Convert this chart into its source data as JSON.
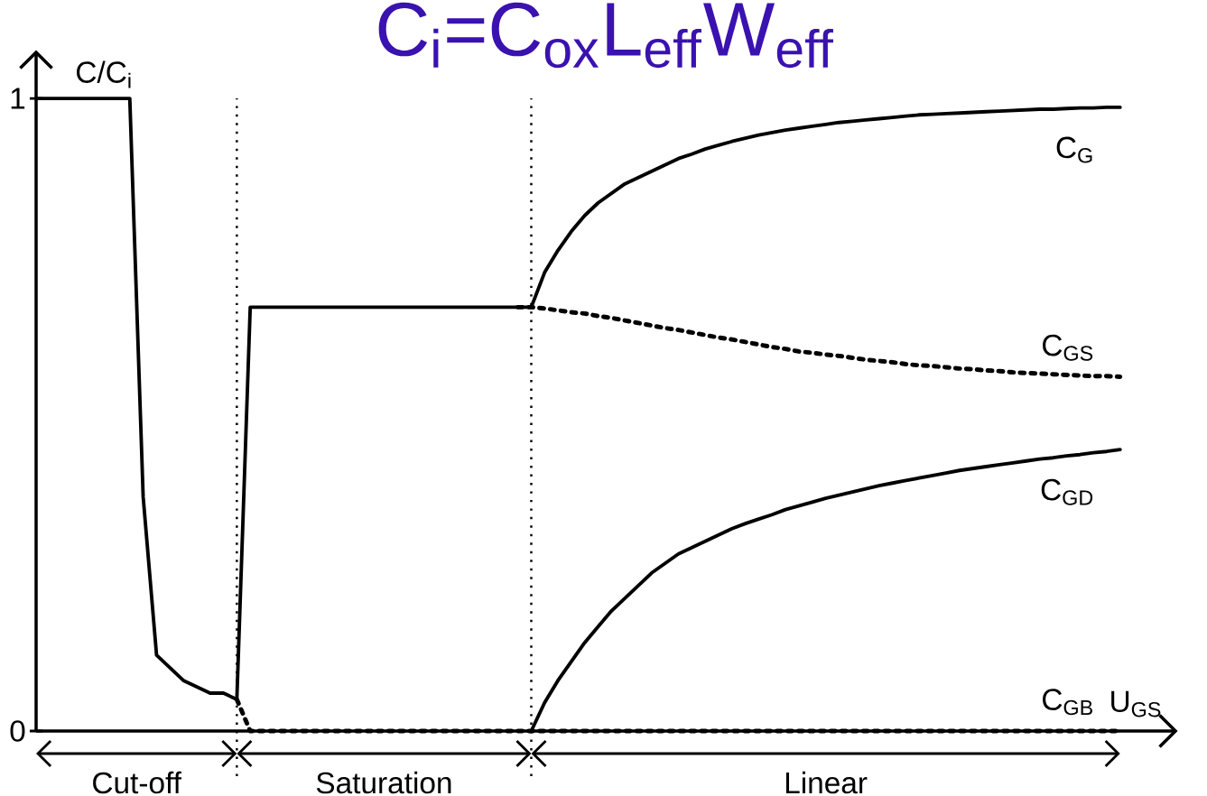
{
  "chart_data": {
    "type": "line",
    "title": "C$_{i}$=C$_{ox}$L$_{eff}$W$_{eff}$",
    "xlabel": "U$_{GS}$",
    "ylabel": "C/C$_{i}$",
    "categories": [
      null,
      null,
      null,
      null,
      null,
      null,
      null,
      null,
      null,
      null,
      null,
      null,
      null,
      null,
      null,
      null,
      null,
      null,
      null,
      null,
      null,
      null,
      null,
      null,
      null,
      null,
      null,
      null,
      null,
      null,
      null,
      null,
      null,
      null,
      null,
      null,
      null,
      null,
      null,
      null,
      null,
      null,
      null,
      null,
      null,
      null,
      null,
      null,
      null,
      null,
      null,
      null,
      null,
      null,
      null,
      null,
      null,
      null,
      null,
      null,
      null,
      null,
      null,
      null,
      null,
      null,
      null,
      null,
      null,
      null,
      null,
      null,
      null,
      null,
      null,
      null,
      null,
      null,
      null,
      null,
      null,
      null
    ],
    "ylim": [
      0,
      1.07
    ],
    "yticks": [
      0,
      1
    ],
    "tick_labels": "y",
    "annotations": [
      "Cut-off",
      "Saturation",
      "Linear"
    ],
    "series": [
      {
        "name": "C$_{G}$",
        "color": "#000000",
        "line_style": "solid",
        "values": [
          1,
          1,
          1,
          1,
          1,
          1,
          1,
          1,
          0.37,
          0.12,
          0.1,
          0.08,
          0.07,
          0.06,
          0.06,
          0.05,
          0.67,
          0.67,
          0.67,
          0.67,
          0.67,
          0.67,
          0.67,
          0.67,
          0.67,
          0.67,
          0.67,
          0.67,
          0.67,
          0.67,
          0.67,
          0.67,
          0.67,
          0.67,
          0.67,
          0.67,
          0.67,
          0.67,
          0.725,
          0.76,
          0.79,
          0.815,
          0.835,
          0.85,
          0.865,
          0.875,
          0.885,
          0.895,
          0.905,
          0.912,
          0.92,
          0.926,
          0.932,
          0.937,
          0.942,
          0.946,
          0.95,
          0.953,
          0.956,
          0.959,
          0.962,
          0.964,
          0.966,
          0.968,
          0.97,
          0.972,
          0.974,
          0.975,
          0.976,
          0.977,
          0.978,
          0.979,
          0.98,
          0.981,
          0.982,
          0.983,
          0.983,
          0.984,
          0.985,
          0.985,
          0.986,
          0.986
        ]
      },
      {
        "name": "C$_{GS}$",
        "color": "#000000",
        "line_style": "dotted",
        "values": [
          null,
          null,
          null,
          null,
          null,
          null,
          null,
          null,
          null,
          null,
          null,
          null,
          null,
          null,
          null,
          null,
          null,
          null,
          null,
          null,
          null,
          null,
          null,
          null,
          null,
          null,
          null,
          null,
          null,
          null,
          null,
          null,
          null,
          null,
          null,
          null,
          0.67,
          0.67,
          0.668,
          0.665,
          0.662,
          0.66,
          0.656,
          0.653,
          0.649,
          0.645,
          0.641,
          0.637,
          0.634,
          0.63,
          0.626,
          0.622,
          0.619,
          0.615,
          0.611,
          0.607,
          0.604,
          0.6,
          0.598,
          0.595,
          0.593,
          0.59,
          0.587,
          0.585,
          0.583,
          0.58,
          0.578,
          0.577,
          0.575,
          0.573,
          0.572,
          0.57,
          0.569,
          0.567,
          0.566,
          0.565,
          0.564,
          0.563,
          0.562,
          0.561,
          0.561,
          0.56
        ]
      },
      {
        "name": "C$_{GD}$",
        "color": "#000000",
        "line_style": "solid",
        "values": [
          null,
          null,
          null,
          null,
          null,
          null,
          null,
          null,
          null,
          null,
          null,
          null,
          null,
          null,
          null,
          null,
          null,
          null,
          null,
          null,
          null,
          null,
          null,
          null,
          null,
          null,
          null,
          null,
          null,
          null,
          null,
          null,
          null,
          null,
          null,
          null,
          null,
          0,
          0.045,
          0.08,
          0.11,
          0.14,
          0.165,
          0.19,
          0.21,
          0.23,
          0.25,
          0.265,
          0.28,
          0.29,
          0.3,
          0.31,
          0.32,
          0.328,
          0.335,
          0.342,
          0.35,
          0.356,
          0.362,
          0.368,
          0.373,
          0.378,
          0.383,
          0.388,
          0.392,
          0.396,
          0.4,
          0.404,
          0.408,
          0.412,
          0.415,
          0.418,
          0.421,
          0.424,
          0.427,
          0.43,
          0.432,
          0.435,
          0.437,
          0.44,
          0.442,
          0.445
        ]
      },
      {
        "name": "C$_{GB}$",
        "color": "#000000",
        "line_style": "dotted",
        "values": [
          null,
          null,
          null,
          null,
          null,
          null,
          null,
          null,
          null,
          null,
          null,
          null,
          null,
          null,
          null,
          0.05,
          0,
          0,
          0,
          0,
          0,
          0,
          0,
          0,
          0,
          0,
          0,
          0,
          0,
          0,
          0,
          0,
          0,
          0,
          0,
          0,
          0,
          0,
          0,
          0,
          0,
          0,
          0,
          0,
          0,
          0,
          0,
          0,
          0,
          0,
          0,
          0,
          0,
          0,
          0,
          0,
          0,
          0,
          0,
          0,
          0,
          0,
          0,
          0,
          0,
          0,
          0,
          0,
          0,
          0,
          0,
          0,
          0,
          0,
          0,
          0,
          0,
          0,
          0,
          0,
          0,
          0
        ]
      }
    ]
  }
}
